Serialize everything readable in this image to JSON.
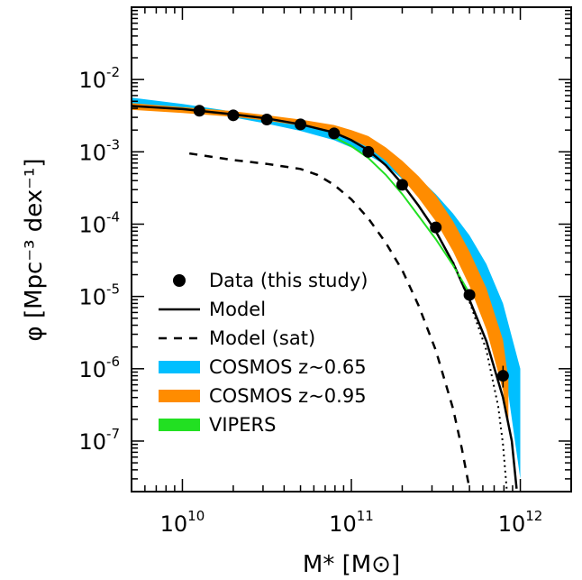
{
  "chart_data": {
    "type": "line",
    "xlabel": "M* [M⊙]",
    "ylabel": "φ [Mpc⁻³ dex⁻¹]",
    "x_scale": "log",
    "y_scale": "log",
    "xlim": [
      5000000000.0,
      2000000000000.0
    ],
    "ylim": [
      2e-08,
      0.1
    ],
    "x_ticks": [
      {
        "value": 10000000000.0,
        "base": "10",
        "exp": "10"
      },
      {
        "value": 100000000000.0,
        "base": "10",
        "exp": "11"
      },
      {
        "value": 1000000000000.0,
        "base": "10",
        "exp": "12"
      }
    ],
    "y_ticks": [
      {
        "value": 1e-07,
        "base": "10",
        "exp": "-7"
      },
      {
        "value": 1e-06,
        "base": "10",
        "exp": "-6"
      },
      {
        "value": 1e-05,
        "base": "10",
        "exp": "-5"
      },
      {
        "value": 0.0001,
        "base": "10",
        "exp": "-4"
      },
      {
        "value": 0.001,
        "base": "10",
        "exp": "-3"
      },
      {
        "value": 0.01,
        "base": "10",
        "exp": "-2"
      }
    ],
    "grid": false,
    "legend_position": "bottom-left",
    "colors": {
      "cosmos_065": "#00bfff",
      "cosmos_095": "#ff8c00",
      "vipers": "#22e022",
      "model": "#000000"
    },
    "series": [
      {
        "name": "Data (this study)",
        "kind": "points",
        "x": [
          12600000000.0,
          20000000000.0,
          31600000000.0,
          50000000000.0,
          79000000000.0,
          126000000000.0,
          200000000000.0,
          316000000000.0,
          500000000000.0,
          790000000000.0
        ],
        "y": [
          0.0037,
          0.0032,
          0.0028,
          0.0024,
          0.0018,
          0.001,
          0.00035,
          9e-05,
          1.05e-05,
          8e-07
        ],
        "yerr_low": [
          0.0035,
          0.00305,
          0.00265,
          0.00225,
          0.00165,
          0.00085,
          0.00031,
          8e-05,
          9e-06,
          5.5e-07
        ],
        "yerr_high": [
          0.0039,
          0.00335,
          0.00295,
          0.00255,
          0.00195,
          0.00115,
          0.00039,
          0.0001,
          1.2e-05,
          1.1e-06
        ]
      },
      {
        "name": "Model",
        "kind": "line",
        "x": [
          5000000000.0,
          10000000000.0,
          20000000000.0,
          31600000000.0,
          50000000000.0,
          79000000000.0,
          100000000000.0,
          126000000000.0,
          160000000000.0,
          200000000000.0,
          250000000000.0,
          316000000000.0,
          400000000000.0,
          500000000000.0,
          630000000000.0,
          790000000000.0,
          890000000000.0,
          950000000000.0
        ],
        "y": [
          0.0043,
          0.0039,
          0.0033,
          0.0029,
          0.0024,
          0.00185,
          0.00145,
          0.00105,
          0.00065,
          0.00036,
          0.00018,
          8e-05,
          2.9e-05,
          9e-06,
          2.4e-06,
          4e-07,
          1e-07,
          2.2e-08
        ]
      },
      {
        "name": "Model (sat)",
        "kind": "dashed",
        "x": [
          11000000000.0,
          20000000000.0,
          31600000000.0,
          50000000000.0,
          63000000000.0,
          79000000000.0,
          100000000000.0,
          126000000000.0,
          160000000000.0,
          200000000000.0,
          250000000000.0,
          316000000000.0,
          400000000000.0,
          450000000000.0,
          500000000000.0
        ],
        "y": [
          0.00095,
          0.00077,
          0.00068,
          0.00058,
          0.00048,
          0.00035,
          0.00022,
          0.00012,
          5.5e-05,
          2.3e-05,
          7.5e-06,
          1.8e-06,
          2.8e-07,
          8e-08,
          2.2e-08
        ]
      },
      {
        "name": "COSMOS z~0.65",
        "kind": "band",
        "x": [
          5000000000.0,
          10000000000.0,
          20000000000.0,
          31600000000.0,
          50000000000.0,
          79000000000.0,
          100000000000.0,
          126000000000.0,
          160000000000.0,
          200000000000.0,
          250000000000.0,
          316000000000.0,
          400000000000.0,
          500000000000.0,
          630000000000.0,
          790000000000.0,
          1000000000000.0
        ],
        "y_low": [
          0.0046,
          0.0039,
          0.003,
          0.00245,
          0.00195,
          0.00145,
          0.00115,
          0.0009,
          0.00065,
          0.00042,
          0.00026,
          0.00014,
          6.5e-05,
          2.4e-05,
          7e-06,
          1.5e-06,
          3e-08
        ],
        "y_high": [
          0.0056,
          0.0046,
          0.0036,
          0.003,
          0.00255,
          0.00205,
          0.00165,
          0.0013,
          0.00095,
          0.00065,
          0.00044,
          0.00026,
          0.00014,
          7e-05,
          2.8e-05,
          8e-06,
          1e-06
        ]
      },
      {
        "name": "COSMOS z~0.95",
        "kind": "band",
        "x": [
          5000000000.0,
          10000000000.0,
          20000000000.0,
          31600000000.0,
          50000000000.0,
          79000000000.0,
          100000000000.0,
          126000000000.0,
          160000000000.0,
          200000000000.0,
          250000000000.0,
          316000000000.0,
          400000000000.0,
          500000000000.0,
          630000000000.0,
          790000000000.0,
          850000000000.0
        ],
        "y_low": [
          0.0038,
          0.00345,
          0.00305,
          0.0027,
          0.0023,
          0.00185,
          0.0015,
          0.00115,
          0.00075,
          0.00043,
          0.00023,
          0.00011,
          4.2e-05,
          1.4e-05,
          3.5e-06,
          5e-07,
          1.5e-07
        ],
        "y_high": [
          0.0047,
          0.00415,
          0.00365,
          0.0032,
          0.0028,
          0.00235,
          0.002,
          0.00165,
          0.00115,
          0.00075,
          0.00046,
          0.00025,
          0.00011,
          4.2e-05,
          1.3e-05,
          2.5e-06,
          7e-07
        ]
      },
      {
        "name": "VIPERS",
        "kind": "line",
        "x": [
          79000000000.0,
          100000000000.0,
          126000000000.0,
          160000000000.0,
          200000000000.0,
          250000000000.0,
          316000000000.0,
          400000000000.0,
          500000000000.0
        ],
        "y": [
          0.0016,
          0.0012,
          0.00082,
          0.00048,
          0.00026,
          0.00013,
          6.2e-05,
          2.7e-05,
          1.1e-05
        ]
      },
      {
        "name": "",
        "kind": "dotted",
        "x": [
          400000000000.0,
          500000000000.0,
          630000000000.0,
          740000000000.0,
          790000000000.0,
          830000000000.0
        ],
        "y": [
          3e-05,
          8.5e-06,
          1.8e-06,
          3e-07,
          9e-08,
          2.2e-08
        ]
      }
    ]
  }
}
